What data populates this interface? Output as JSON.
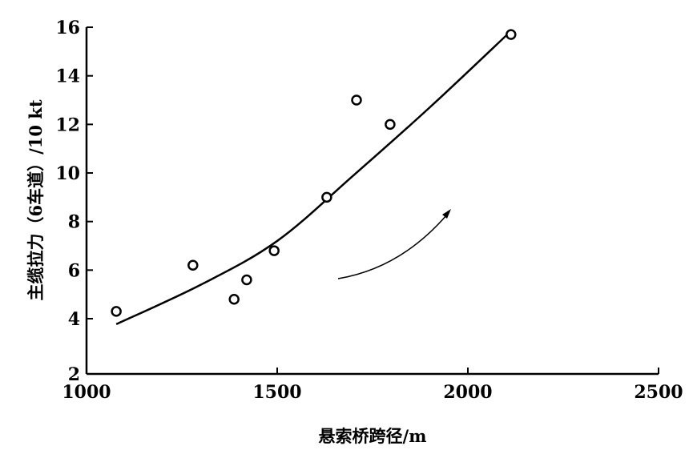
{
  "chart_data": {
    "type": "scatter",
    "xlabel": "悬索桥跨径/m",
    "ylabel": "主缆拉力（6车道）/10 kt",
    "xlim": [
      1000,
      2500
    ],
    "ylim": [
      2,
      16
    ],
    "xticks": [
      1000,
      1500,
      2000,
      2500
    ],
    "yticks": [
      2,
      4,
      6,
      8,
      10,
      12,
      14,
      16
    ],
    "grid": false,
    "points": [
      {
        "x": 1078,
        "y": 4.3
      },
      {
        "x": 1279,
        "y": 6.2
      },
      {
        "x": 1387,
        "y": 4.8
      },
      {
        "x": 1420,
        "y": 5.6
      },
      {
        "x": 1492,
        "y": 6.8
      },
      {
        "x": 1630,
        "y": 9.0
      },
      {
        "x": 1708,
        "y": 13.0
      },
      {
        "x": 1796,
        "y": 12.0
      },
      {
        "x": 2113,
        "y": 15.7
      }
    ],
    "trend_curve": [
      {
        "x": 1078,
        "y": 3.8
      },
      {
        "x": 1300,
        "y": 5.4
      },
      {
        "x": 1500,
        "y": 7.2
      },
      {
        "x": 1700,
        "y": 9.9
      },
      {
        "x": 1900,
        "y": 12.7
      },
      {
        "x": 2110,
        "y": 15.8
      }
    ],
    "annotation": "arrow indicating increasing trend"
  }
}
